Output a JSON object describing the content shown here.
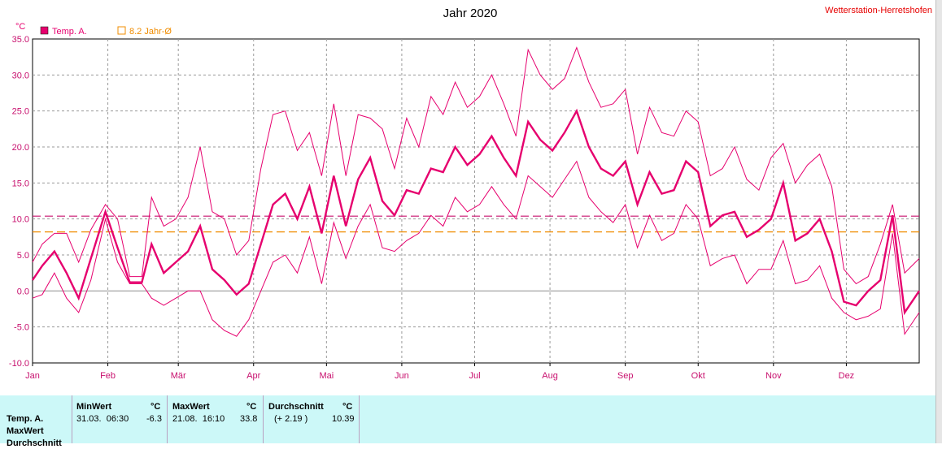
{
  "chart_data": {
    "type": "line",
    "title": "Jahr 2020",
    "station": "Wetterstation-Herretshofen",
    "unit": "°C",
    "ylim": [
      -10,
      35
    ],
    "yticks": [
      "35.0",
      "30.0",
      "25.0",
      "20.0",
      "15.0",
      "10.0",
      "5.0",
      "0.0",
      "-5.0",
      "-10.0"
    ],
    "months": [
      "Jan",
      "Feb",
      "Mär",
      "Apr",
      "Mai",
      "Jun",
      "Jul",
      "Aug",
      "Sep",
      "Okt",
      "Nov",
      "Dez"
    ],
    "grid": true,
    "legend": [
      {
        "label": "Temp. A.",
        "color": "#e6006e"
      },
      {
        "label": "8.2 Jahr-Ø",
        "color": "#f08c00"
      }
    ],
    "reference_lines": [
      {
        "label": "8.2 Jahr-Ø",
        "value": 8.2,
        "color": "#f08c00"
      },
      {
        "label": "Durchschnitt",
        "value": 10.39,
        "color": "#c8106e"
      }
    ],
    "series": [
      {
        "name": "Temp. A.",
        "color": "#e6006e",
        "x_day": [
          1,
          5,
          10,
          15,
          20,
          25,
          31,
          36,
          41,
          46,
          50,
          55,
          60,
          65,
          70,
          75,
          80,
          85,
          90,
          95,
          100,
          105,
          110,
          115,
          120,
          125,
          130,
          135,
          140,
          145,
          150,
          155,
          160,
          165,
          170,
          175,
          180,
          185,
          190,
          195,
          200,
          205,
          210,
          215,
          220,
          225,
          230,
          235,
          240,
          245,
          250,
          255,
          260,
          265,
          270,
          275,
          280,
          285,
          290,
          295,
          300,
          305,
          310,
          315,
          320,
          325,
          330,
          335,
          340,
          345,
          350,
          355,
          360,
          366
        ],
        "mean": [
          1.5,
          3.5,
          5.5,
          2.5,
          -1.0,
          4.5,
          11.0,
          6.0,
          1.2,
          1.2,
          6.5,
          2.5,
          4.0,
          5.5,
          9.0,
          3.0,
          1.5,
          -0.5,
          1.0,
          6.5,
          12.0,
          13.5,
          10.0,
          14.5,
          8.0,
          16.0,
          9.0,
          15.5,
          18.5,
          12.5,
          10.5,
          14.0,
          13.5,
          17.0,
          16.5,
          20.0,
          17.5,
          19.0,
          21.5,
          18.5,
          16.0,
          23.5,
          21.0,
          19.5,
          22.0,
          25.0,
          20.0,
          17.0,
          16.0,
          18.0,
          12.0,
          16.5,
          13.5,
          14.0,
          18.0,
          16.5,
          9.0,
          10.5,
          11.0,
          7.5,
          8.5,
          10.0,
          15.0,
          7.0,
          8.0,
          10.0,
          5.5,
          -1.5,
          -2.0,
          0.0,
          1.5,
          10.5,
          -3.0,
          0.0
        ],
        "max": [
          4.0,
          6.5,
          8.0,
          8.0,
          4.0,
          8.5,
          12.0,
          10.0,
          2.0,
          2.0,
          13.0,
          9.0,
          10.0,
          13.0,
          20.0,
          11.0,
          10.0,
          5.0,
          7.0,
          17.0,
          24.5,
          25.0,
          19.5,
          22.0,
          16.0,
          26.0,
          16.0,
          24.5,
          24.0,
          22.5,
          17.0,
          24.0,
          20.0,
          27.0,
          24.5,
          29.0,
          25.5,
          27.0,
          30.0,
          26.0,
          21.5,
          33.5,
          30.0,
          28.0,
          29.5,
          33.8,
          29.0,
          25.5,
          26.0,
          28.0,
          19.0,
          25.5,
          22.0,
          21.5,
          25.0,
          23.5,
          16.0,
          17.0,
          20.0,
          15.5,
          14.0,
          18.5,
          20.5,
          15.0,
          17.5,
          19.0,
          14.5,
          3.0,
          1.0,
          2.0,
          6.5,
          12.0,
          2.5,
          4.5
        ],
        "min": [
          -1.0,
          -0.5,
          2.5,
          -1.0,
          -3.0,
          1.5,
          10.0,
          4.0,
          1.0,
          1.0,
          -1.0,
          -2.0,
          -1.0,
          0.0,
          0.0,
          -4.0,
          -5.5,
          -6.3,
          -4.0,
          0.0,
          4.0,
          5.0,
          2.5,
          7.5,
          1.0,
          9.5,
          4.5,
          9.0,
          12.0,
          6.0,
          5.5,
          7.0,
          8.0,
          10.5,
          9.0,
          13.0,
          11.0,
          12.0,
          14.5,
          12.0,
          10.0,
          16.0,
          14.5,
          13.0,
          15.5,
          18.0,
          13.0,
          11.0,
          9.5,
          12.0,
          6.0,
          10.5,
          7.0,
          8.0,
          12.0,
          10.0,
          3.5,
          4.5,
          5.0,
          1.0,
          3.0,
          3.0,
          7.0,
          1.0,
          1.5,
          3.5,
          -1.0,
          -3.0,
          -4.0,
          -3.5,
          -2.5,
          8.0,
          -6.0,
          -3.0
        ]
      }
    ]
  },
  "stats": {
    "headers": {
      "min": "MinWert",
      "max": "MaxWert",
      "avg": "Durchschnitt",
      "unit": "°C"
    },
    "row_labels": [
      "Temp. A.",
      "MaxWert",
      "Durchschnitt"
    ],
    "min_datetime": "31.03.  06:30",
    "min_value": "-6.3",
    "max_datetime": "21.08.  16:10",
    "max_value": "33.8",
    "avg_delta": "(+ 2.19 )",
    "avg_value": "10.39"
  }
}
